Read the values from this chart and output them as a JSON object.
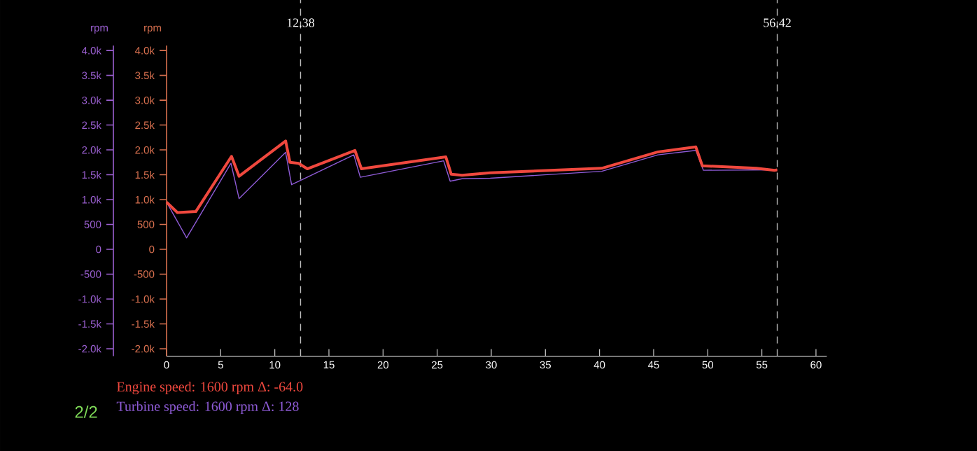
{
  "chart_data": {
    "type": "line",
    "xlim": [
      0,
      61
    ],
    "xticks": [
      0,
      5,
      10,
      15,
      20,
      25,
      30,
      35,
      40,
      45,
      50,
      55,
      60
    ],
    "ylim": [
      -2150,
      4100
    ],
    "yticks": [
      {
        "value": -2000,
        "label": "-2.0k"
      },
      {
        "value": -1500,
        "label": "-1.5k"
      },
      {
        "value": -1000,
        "label": "-1.0k"
      },
      -500,
      0,
      500,
      {
        "value": 1000,
        "label": "1.0k"
      },
      {
        "value": 1500,
        "label": "1.5k"
      },
      {
        "value": 2000,
        "label": "2.0k"
      },
      {
        "value": 2500,
        "label": "2.5k"
      },
      {
        "value": 3000,
        "label": "3.0k"
      },
      {
        "value": 3500,
        "label": "3.5k"
      },
      {
        "value": 4000,
        "label": "4.0k"
      }
    ],
    "y2lim": [
      -2150,
      4100
    ],
    "y2ticks": [
      {
        "value": -2000,
        "label": "-2.0k"
      },
      {
        "value": -1500,
        "label": "-1.5k"
      },
      {
        "value": -1000,
        "label": "-1.0k"
      },
      -500,
      0,
      500,
      {
        "value": 1000,
        "label": "1.0k"
      },
      {
        "value": 1500,
        "label": "1.5k"
      },
      {
        "value": 2000,
        "label": "2.0k"
      },
      {
        "value": 2500,
        "label": "2.5k"
      },
      {
        "value": 3000,
        "label": "3.0k"
      },
      {
        "value": 3500,
        "label": "3.5k"
      },
      {
        "value": 4000,
        "label": "4.0k"
      }
    ],
    "ylabel": "rpm",
    "y2label": "rpm",
    "series": [
      {
        "name": "Engine speed: 1600 rpm Δ: -64.0",
        "color": "#f0483e",
        "x": [
          0,
          1.0,
          2.7,
          6.0,
          6.7,
          11.0,
          11.4,
          12.2,
          13.0,
          17.4,
          18.0,
          25.8,
          26.3,
          27.3,
          29.9,
          40.2,
          45.4,
          48.9,
          49.5,
          54.5,
          56.2,
          56.42
        ],
        "values": [
          950,
          740,
          760,
          1870,
          1470,
          2180,
          1750,
          1730,
          1620,
          1990,
          1620,
          1860,
          1510,
          1490,
          1540,
          1630,
          1960,
          2060,
          1680,
          1630,
          1590,
          1600
        ]
      },
      {
        "name": "Turbine speed: 1600 rpm Δ: 128",
        "color": "#8e5bd6",
        "axis": "y2",
        "x": [
          0,
          1.85,
          5.95,
          6.7,
          11.0,
          11.55,
          17.3,
          17.9,
          25.6,
          26.2,
          27.3,
          29.9,
          40.2,
          45.4,
          48.9,
          49.6,
          56.42
        ],
        "values": [
          950,
          230,
          1730,
          1020,
          1950,
          1300,
          1900,
          1450,
          1780,
          1370,
          1420,
          1430,
          1570,
          1900,
          1990,
          1590,
          1600
        ]
      }
    ],
    "ref_lines": [
      {
        "axis": "x",
        "value": 12.38,
        "label": "12.38",
        "color": "#bbbbbb",
        "line_style": "dashed"
      },
      {
        "axis": "x",
        "value": 56.42,
        "label": "56.42",
        "color": "#bbbbbb",
        "line_style": "dashed"
      }
    ],
    "annotations": [
      "2/2"
    ],
    "legend": "bottom left"
  }
}
